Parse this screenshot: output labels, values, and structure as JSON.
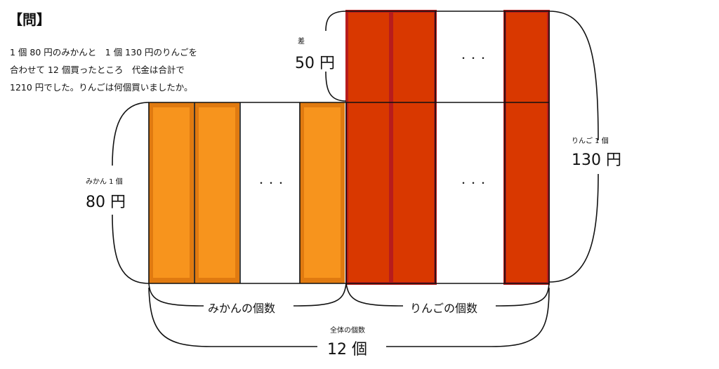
{
  "question": {
    "heading": "【問】",
    "lines": [
      "1 個 80 円のみかんと　1 個 130 円のりんごを",
      "合わせて 12 個買ったところ　代金は合計で",
      "1210 円でした。りんごは何個買いましたか。"
    ]
  },
  "diagram": {
    "difference_label": "差",
    "difference_value": "50 円",
    "mikan_unit_label": "みかん 1 個",
    "mikan_unit_price": "80 円",
    "ringo_unit_label": "りんご 1 個",
    "ringo_unit_price": "130 円",
    "ellipsis": "・・・",
    "mikan_count_label": "みかんの個数",
    "ringo_count_label": "りんごの個数",
    "total_label": "全体の個数",
    "total_value": "12 個",
    "colors": {
      "mikan_fill": "#f7941d",
      "mikan_border": "#e07a10",
      "ringo_fill": "#d93800",
      "ringo_border": "#b81c1c",
      "line": "#111111"
    }
  }
}
